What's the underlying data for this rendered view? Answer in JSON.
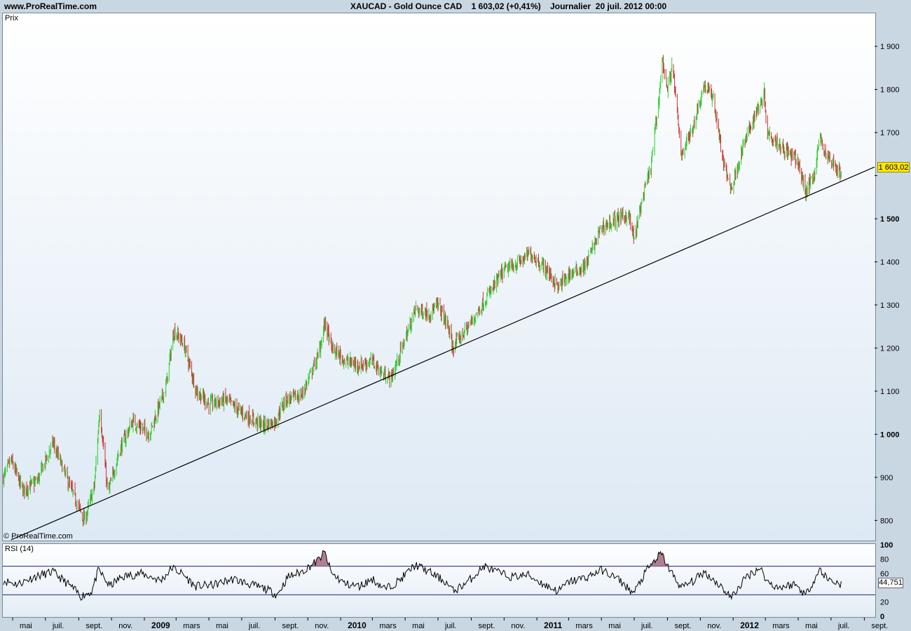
{
  "header": {
    "site": "www.ProRealTime.com",
    "title": "XAUCAD - Gold Ounce CAD    1 603,02 (+0,41%)    Journalier  20 juil. 2012 00:00"
  },
  "panels": {
    "price_label": "Prix",
    "copyright": "© ProRealTime.com",
    "rsi_label": "RSI (14)",
    "last_price": "1 603,02",
    "last_rsi": "44,751"
  },
  "colors": {
    "up": "#33cc33",
    "down": "#cc3333",
    "trendline": "#000000",
    "rsi_line": "#000000",
    "rsi_band": "#202080",
    "overbought_fill": "#b08090"
  },
  "chart_data": [
    {
      "type": "candlestick",
      "title": "XAUCAD - Gold Ounce CAD",
      "ylabel": "Prix",
      "y_ticks": [
        800,
        900,
        1000,
        1100,
        1200,
        1300,
        1400,
        1500,
        1600,
        1700,
        1800,
        1900
      ],
      "y_tick_labels": [
        "800",
        "900",
        "1 000",
        "1 100",
        "1 200",
        "1 300",
        "1 400",
        "1 500",
        "",
        "1 700",
        "1 800",
        "1 900"
      ],
      "ylim": [
        755,
        1975
      ],
      "x_tick_labels": [
        "mai",
        "juil.",
        "sept.",
        "nov.",
        "2009",
        "mars",
        "mai",
        "juil.",
        "sept.",
        "nov.",
        "2010",
        "mars",
        "mai",
        "juil.",
        "sept.",
        "nov.",
        "2011",
        "mars",
        "mai",
        "juil.",
        "sept.",
        "nov.",
        "2012",
        "mars",
        "mai",
        "juil.",
        "sept."
      ],
      "x_tick_bold": [
        "2009",
        "2010",
        "2011",
        "2012"
      ],
      "price_path": [
        [
          "2008-04-14",
          900
        ],
        [
          "2008-04-28",
          940
        ],
        [
          "2008-05-20",
          870
        ],
        [
          "2008-06-15",
          890
        ],
        [
          "2008-07-15",
          980
        ],
        [
          "2008-08-15",
          880
        ],
        [
          "2008-09-08",
          810
        ],
        [
          "2008-09-12",
          800
        ],
        [
          "2008-09-30",
          880
        ],
        [
          "2008-10-10",
          1060
        ],
        [
          "2008-10-25",
          860
        ],
        [
          "2008-11-15",
          960
        ],
        [
          "2008-12-10",
          1030
        ],
        [
          "2009-01-10",
          1000
        ],
        [
          "2009-02-10",
          1110
        ],
        [
          "2009-02-25",
          1240
        ],
        [
          "2009-03-15",
          1210
        ],
        [
          "2009-04-08",
          1100
        ],
        [
          "2009-05-01",
          1070
        ],
        [
          "2009-06-01",
          1080
        ],
        [
          "2009-07-01",
          1050
        ],
        [
          "2009-08-10",
          1020
        ],
        [
          "2009-09-01",
          1030
        ],
        [
          "2009-09-20",
          1080
        ],
        [
          "2009-10-20",
          1090
        ],
        [
          "2009-11-20",
          1180
        ],
        [
          "2009-12-03",
          1260
        ],
        [
          "2009-12-15",
          1200
        ],
        [
          "2010-01-10",
          1170
        ],
        [
          "2010-02-05",
          1160
        ],
        [
          "2010-03-01",
          1170
        ],
        [
          "2010-03-20",
          1140
        ],
        [
          "2010-04-05",
          1130
        ],
        [
          "2010-05-01",
          1220
        ],
        [
          "2010-05-20",
          1290
        ],
        [
          "2010-06-15",
          1280
        ],
        [
          "2010-07-01",
          1300
        ],
        [
          "2010-07-20",
          1250
        ],
        [
          "2010-07-28",
          1200
        ],
        [
          "2010-09-01",
          1260
        ],
        [
          "2010-10-01",
          1320
        ],
        [
          "2010-11-01",
          1380
        ],
        [
          "2010-12-01",
          1400
        ],
        [
          "2010-12-20",
          1420
        ],
        [
          "2011-01-20",
          1380
        ],
        [
          "2011-02-10",
          1340
        ],
        [
          "2011-03-01",
          1370
        ],
        [
          "2011-04-01",
          1390
        ],
        [
          "2011-05-01",
          1480
        ],
        [
          "2011-06-01",
          1500
        ],
        [
          "2011-06-20",
          1510
        ],
        [
          "2011-07-01",
          1450
        ],
        [
          "2011-07-15",
          1540
        ],
        [
          "2011-08-01",
          1620
        ],
        [
          "2011-08-15",
          1770
        ],
        [
          "2011-08-22",
          1870
        ],
        [
          "2011-09-01",
          1800
        ],
        [
          "2011-09-10",
          1860
        ],
        [
          "2011-09-26",
          1650
        ],
        [
          "2011-10-15",
          1700
        ],
        [
          "2011-11-08",
          1810
        ],
        [
          "2011-11-25",
          1780
        ],
        [
          "2011-12-15",
          1620
        ],
        [
          "2011-12-29",
          1570
        ],
        [
          "2012-01-20",
          1670
        ],
        [
          "2012-02-10",
          1740
        ],
        [
          "2012-02-28",
          1790
        ],
        [
          "2012-03-05",
          1700
        ],
        [
          "2012-03-30",
          1670
        ],
        [
          "2012-04-15",
          1650
        ],
        [
          "2012-05-01",
          1630
        ],
        [
          "2012-05-15",
          1560
        ],
        [
          "2012-06-01",
          1610
        ],
        [
          "2012-06-10",
          1690
        ],
        [
          "2012-06-25",
          1640
        ],
        [
          "2012-07-05",
          1630
        ],
        [
          "2012-07-20",
          1603.02
        ]
      ],
      "trendline": [
        [
          "2008-04-28",
          755
        ],
        [
          "2012-09-20",
          1620
        ]
      ],
      "last_value": 1603.02
    },
    {
      "type": "line",
      "title": "RSI (14)",
      "y_ticks": [
        0,
        20,
        40,
        60,
        80,
        100
      ],
      "y_tick_labels": [
        "0",
        "20",
        "",
        "60",
        "80",
        "100"
      ],
      "ylim": [
        0,
        100
      ],
      "bands": [
        30,
        70
      ],
      "rsi_path": [
        [
          "2008-04-14",
          50
        ],
        [
          "2008-05-10",
          45
        ],
        [
          "2008-06-10",
          55
        ],
        [
          "2008-07-15",
          62
        ],
        [
          "2008-08-20",
          40
        ],
        [
          "2008-09-05",
          28
        ],
        [
          "2008-09-25",
          35
        ],
        [
          "2008-10-08",
          65
        ],
        [
          "2008-10-28",
          42
        ],
        [
          "2008-11-20",
          55
        ],
        [
          "2008-12-25",
          60
        ],
        [
          "2009-02-01",
          50
        ],
        [
          "2009-02-22",
          68
        ],
        [
          "2009-03-15",
          58
        ],
        [
          "2009-04-05",
          42
        ],
        [
          "2009-05-10",
          44
        ],
        [
          "2009-06-15",
          52
        ],
        [
          "2009-07-15",
          45
        ],
        [
          "2009-08-15",
          38
        ],
        [
          "2009-09-05",
          30
        ],
        [
          "2009-09-25",
          55
        ],
        [
          "2009-10-20",
          62
        ],
        [
          "2009-11-20",
          78
        ],
        [
          "2009-12-02",
          90
        ],
        [
          "2009-12-15",
          60
        ],
        [
          "2010-01-10",
          45
        ],
        [
          "2010-02-05",
          42
        ],
        [
          "2010-03-01",
          52
        ],
        [
          "2010-03-25",
          38
        ],
        [
          "2010-04-20",
          50
        ],
        [
          "2010-05-20",
          72
        ],
        [
          "2010-06-15",
          62
        ],
        [
          "2010-07-15",
          48
        ],
        [
          "2010-07-30",
          35
        ],
        [
          "2010-08-25",
          48
        ],
        [
          "2010-09-25",
          70
        ],
        [
          "2010-10-25",
          60
        ],
        [
          "2010-11-15",
          55
        ],
        [
          "2010-12-15",
          58
        ],
        [
          "2011-01-20",
          42
        ],
        [
          "2011-02-10",
          35
        ],
        [
          "2011-03-01",
          48
        ],
        [
          "2011-04-05",
          55
        ],
        [
          "2011-05-01",
          65
        ],
        [
          "2011-06-01",
          52
        ],
        [
          "2011-06-30",
          32
        ],
        [
          "2011-07-25",
          65
        ],
        [
          "2011-08-20",
          88
        ],
        [
          "2011-09-05",
          65
        ],
        [
          "2011-09-26",
          40
        ],
        [
          "2011-10-20",
          50
        ],
        [
          "2011-11-08",
          62
        ],
        [
          "2011-12-05",
          45
        ],
        [
          "2011-12-29",
          26
        ],
        [
          "2012-01-25",
          55
        ],
        [
          "2012-02-20",
          68
        ],
        [
          "2012-03-05",
          48
        ],
        [
          "2012-03-25",
          40
        ],
        [
          "2012-04-25",
          45
        ],
        [
          "2012-05-15",
          30
        ],
        [
          "2012-06-10",
          65
        ],
        [
          "2012-06-25",
          52
        ],
        [
          "2012-07-20",
          44.751
        ]
      ],
      "last_value": 44.751
    }
  ]
}
